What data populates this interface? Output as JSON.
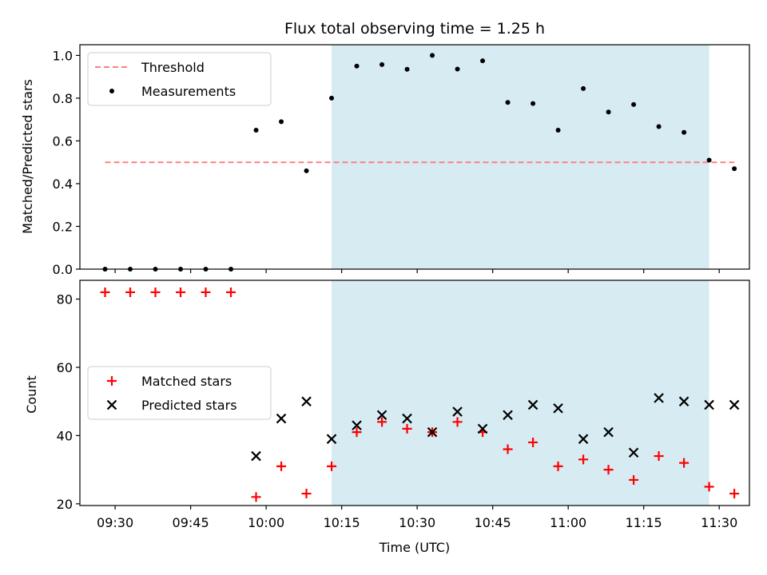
{
  "chart_data": [
    {
      "type": "scatter",
      "title": "Flux total observing time = 1.25 h",
      "xlabel": "",
      "ylabel": "Matched/Predicted stars",
      "xlim": [
        "09:23",
        "11:36"
      ],
      "ylim": [
        0,
        1.05
      ],
      "y_ticks": [
        0.0,
        0.2,
        0.4,
        0.6,
        0.8,
        1.0
      ],
      "y_tick_labels": [
        "0.0",
        "0.2",
        "0.4",
        "0.6",
        "0.8",
        "1.0"
      ],
      "shaded_region": {
        "x_start": "10:13",
        "x_end": "11:28",
        "color": "#add8e6"
      },
      "legend": {
        "position": "top-left",
        "entries": [
          "Threshold",
          "Measurements"
        ]
      },
      "series": [
        {
          "name": "Threshold",
          "style": "dashed-line",
          "color": "#ff7f7f",
          "x": [
            "09:28",
            "11:33"
          ],
          "y": [
            0.5,
            0.5
          ]
        },
        {
          "name": "Measurements",
          "style": "dot",
          "color": "#000000",
          "x": [
            "09:28",
            "09:33",
            "09:38",
            "09:43",
            "09:48",
            "09:53",
            "09:58",
            "10:03",
            "10:08",
            "10:13",
            "10:18",
            "10:23",
            "10:28",
            "10:33",
            "10:38",
            "10:43",
            "10:48",
            "10:53",
            "10:58",
            "11:03",
            "11:08",
            "11:13",
            "11:18",
            "11:23",
            "11:28",
            "11:33"
          ],
          "y": [
            0.0,
            0.0,
            0.0,
            0.0,
            0.0,
            0.0,
            0.65,
            0.69,
            0.46,
            0.8,
            0.95,
            0.957,
            0.935,
            1.0,
            0.936,
            0.975,
            0.78,
            0.775,
            0.65,
            0.845,
            0.735,
            0.77,
            0.667,
            0.64,
            0.51,
            0.47
          ]
        }
      ]
    },
    {
      "type": "scatter",
      "title": "",
      "xlabel": "Time (UTC)",
      "ylabel": "Count",
      "xlim": [
        "09:23",
        "11:36"
      ],
      "ylim": [
        19.5,
        85.5
      ],
      "x_ticks": [
        "09:30",
        "09:45",
        "10:00",
        "10:15",
        "10:30",
        "10:45",
        "11:00",
        "11:15",
        "11:30"
      ],
      "y_ticks": [
        20,
        40,
        60,
        80
      ],
      "y_tick_labels": [
        "20",
        "40",
        "60",
        "80"
      ],
      "shaded_region": {
        "x_start": "10:13",
        "x_end": "11:28",
        "color": "#add8e6"
      },
      "legend": {
        "position": "center-left",
        "entries": [
          "Matched stars",
          "Predicted stars"
        ]
      },
      "series": [
        {
          "name": "Matched stars",
          "marker": "+",
          "color": "#ff0000",
          "x": [
            "09:28",
            "09:33",
            "09:38",
            "09:43",
            "09:48",
            "09:53",
            "09:58",
            "10:03",
            "10:08",
            "10:13",
            "10:18",
            "10:23",
            "10:28",
            "10:33",
            "10:38",
            "10:43",
            "10:48",
            "10:53",
            "10:58",
            "11:03",
            "11:08",
            "11:13",
            "11:18",
            "11:23",
            "11:28",
            "11:33"
          ],
          "y": [
            82,
            82,
            82,
            82,
            82,
            82,
            22,
            31,
            23,
            31,
            41,
            44,
            42,
            41,
            44,
            41,
            36,
            38,
            31,
            33,
            30,
            27,
            34,
            32,
            25,
            23
          ]
        },
        {
          "name": "Predicted stars",
          "marker": "x",
          "color": "#000000",
          "x": [
            "09:58",
            "10:03",
            "10:08",
            "10:13",
            "10:18",
            "10:23",
            "10:28",
            "10:33",
            "10:38",
            "10:43",
            "10:48",
            "10:53",
            "10:58",
            "11:03",
            "11:08",
            "11:13",
            "11:18",
            "11:23",
            "11:28",
            "11:33"
          ],
          "y": [
            34,
            45,
            50,
            39,
            43,
            46,
            45,
            41,
            47,
            42,
            46,
            49,
            48,
            39,
            41,
            35,
            51,
            50,
            49,
            49
          ]
        }
      ]
    }
  ]
}
